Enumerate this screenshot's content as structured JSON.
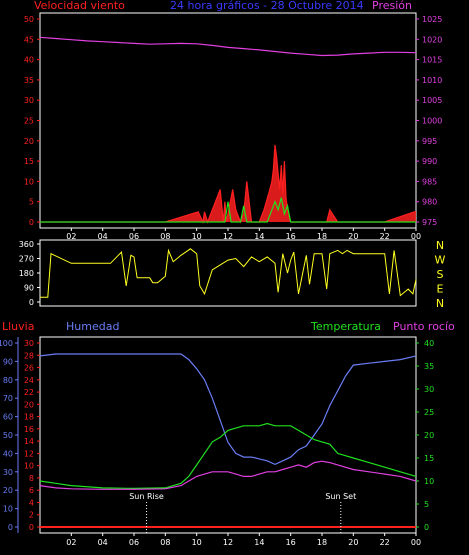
{
  "colors": {
    "background": "#000000",
    "frame": "#ffffff",
    "wind_speed": "#ff2020",
    "wind_gust": "#20e020",
    "pressure": "#e040e0",
    "direction": "#ffff20",
    "rain": "#ff2020",
    "humidity": "#6a7df5",
    "temperature": "#20e020",
    "dewpoint": "#e040e0",
    "rain_axis": "#ff2020",
    "humidity_axis": "#6a7df5",
    "temp_axis": "#20e020",
    "title": "#3a3aff",
    "sun_line": "#ffffff"
  },
  "header": {
    "wind_label": "Velocidad viento",
    "title": "24 hora gráficos - 28 Octubre 2014",
    "pressure_label": "Presión"
  },
  "direction_labels": [
    "N",
    "W",
    "S",
    "E",
    "N"
  ],
  "bottom_header": {
    "rain_label": "Lluvia",
    "humidity_label": "Humedad",
    "temp_label": "Temperatura",
    "dew_label": "Punto rocío"
  },
  "annotations": {
    "sunrise": "Sun Rise",
    "sunset": "Sun Set",
    "sunrise_hour": 6.8,
    "sunset_hour": 19.2
  },
  "chart_data": [
    {
      "type": "line",
      "panel": "wind_pressure",
      "x_ticks": [
        "02",
        "04",
        "06",
        "08",
        "10",
        "12",
        "14",
        "16",
        "18",
        "20",
        "22",
        "00"
      ],
      "x_range_hours": [
        0,
        24
      ],
      "y_left_ticks": [
        "0",
        "5",
        "10",
        "15",
        "20",
        "25",
        "30",
        "35",
        "40",
        "45",
        "50"
      ],
      "y_left_range": [
        0,
        50
      ],
      "y_right_ticks": [
        "975",
        "980",
        "985",
        "990",
        "995",
        "1000",
        "1005",
        "1010",
        "1015",
        "1020",
        "1025"
      ],
      "y_right_range": [
        975,
        1025
      ],
      "series": [
        {
          "name": "Presión",
          "axis": "right",
          "x": [
            0,
            1,
            2,
            3,
            4,
            5,
            6,
            7,
            8,
            9,
            10,
            11,
            12,
            13,
            14,
            15,
            16,
            17,
            18,
            19,
            20,
            21,
            22,
            23,
            24
          ],
          "values": [
            1020.5,
            1020.2,
            1019.9,
            1019.6,
            1019.4,
            1019.2,
            1019.0,
            1018.8,
            1018.9,
            1019.0,
            1018.9,
            1018.5,
            1018.0,
            1017.7,
            1017.4,
            1017.0,
            1016.6,
            1016.3,
            1016.0,
            1016.1,
            1016.4,
            1016.6,
            1016.8,
            1016.8,
            1016.7
          ]
        },
        {
          "name": "Velocidad viento",
          "axis": "left",
          "x": [
            0,
            2,
            4,
            6,
            8,
            10.1,
            10.4,
            10.5,
            10.7,
            11.5,
            11.7,
            11.8,
            11.9,
            12.3,
            12.5,
            12.8,
            13.0,
            13.2,
            13.5,
            14.0,
            14.3,
            14.6,
            14.8,
            14.9,
            15.0,
            15.1,
            15.2,
            15.3,
            15.4,
            15.5,
            15.6,
            15.7,
            15.8,
            16.0,
            16.3,
            17.0,
            18.3,
            18.5,
            19.0,
            20.0,
            22.0,
            23.9,
            24.0
          ],
          "values": [
            0,
            0,
            0,
            0,
            0,
            2.5,
            0,
            2.5,
            0,
            8,
            0,
            5,
            0,
            8,
            3,
            0,
            2,
            10,
            0,
            0,
            3,
            7,
            10,
            13,
            19,
            16,
            12,
            8,
            14,
            7,
            15,
            6,
            3,
            0,
            0,
            0,
            0,
            3,
            0,
            0,
            0,
            2.5,
            2.5
          ]
        },
        {
          "name": "Gust",
          "axis": "left",
          "x": [
            0,
            11.8,
            12.0,
            12.2,
            12.8,
            13.0,
            13.2,
            14.5,
            14.8,
            15.0,
            15.2,
            15.4,
            15.6,
            15.8,
            16.0,
            16.5,
            24.0
          ],
          "values": [
            0,
            0,
            5,
            0,
            0,
            4,
            0,
            0,
            3,
            5,
            3,
            6,
            2,
            4,
            0,
            0,
            0
          ]
        }
      ]
    },
    {
      "type": "line",
      "panel": "wind_direction",
      "y_ticks": [
        "0",
        "90",
        "180",
        "270",
        "360"
      ],
      "y_range": [
        0,
        360
      ],
      "series": [
        {
          "name": "Dirección",
          "x": [
            0,
            0.5,
            0.7,
            2,
            3.5,
            4.5,
            5.0,
            5.2,
            5.5,
            5.8,
            6.0,
            6.2,
            6.5,
            7.0,
            7.2,
            7.5,
            8.0,
            8.2,
            8.5,
            9.0,
            9.3,
            9.6,
            10.0,
            10.2,
            10.5,
            11.0,
            11.5,
            12.0,
            12.5,
            13.0,
            13.5,
            14.0,
            14.5,
            15.0,
            15.2,
            15.5,
            15.8,
            16.0,
            16.2,
            16.5,
            17.0,
            17.2,
            17.5,
            18.0,
            18.3,
            18.5,
            19.0,
            19.3,
            19.6,
            20.0,
            21.0,
            22.0,
            22.3,
            22.6,
            23.0,
            23.5,
            23.8,
            24.0
          ],
          "values": [
            30,
            30,
            300,
            240,
            240,
            240,
            290,
            310,
            100,
            290,
            280,
            150,
            150,
            150,
            120,
            120,
            160,
            320,
            250,
            290,
            310,
            330,
            300,
            100,
            50,
            200,
            230,
            260,
            270,
            220,
            280,
            250,
            280,
            240,
            60,
            300,
            180,
            260,
            310,
            50,
            290,
            110,
            300,
            300,
            80,
            300,
            320,
            300,
            320,
            300,
            300,
            300,
            50,
            320,
            40,
            80,
            50,
            140
          ]
        }
      ]
    },
    {
      "type": "line",
      "panel": "rain_humidity_temp",
      "x_ticks": [
        "02",
        "04",
        "06",
        "08",
        "10",
        "12",
        "14",
        "16",
        "18",
        "20",
        "22",
        "00"
      ],
      "x_range_hours": [
        0,
        24
      ],
      "y_rain_ticks": [
        "0",
        "2",
        "4",
        "6",
        "8",
        "10",
        "12",
        "14",
        "16",
        "18",
        "20",
        "22",
        "24",
        "26",
        "28",
        "30"
      ],
      "y_rain_range": [
        0,
        30
      ],
      "y_humidity_ticks": [
        "0",
        "10",
        "20",
        "30",
        "40",
        "50",
        "60",
        "70",
        "80",
        "90",
        "100"
      ],
      "y_humidity_range": [
        0,
        100
      ],
      "y_temp_ticks": [
        "0",
        "5",
        "10",
        "15",
        "20",
        "25",
        "30",
        "35",
        "40"
      ],
      "y_temp_range": [
        0,
        40
      ],
      "series": [
        {
          "name": "Humedad",
          "axis": "humidity",
          "x": [
            0,
            1,
            2,
            4,
            6,
            8,
            9.0,
            9.5,
            10.0,
            10.5,
            11.0,
            11.5,
            12.0,
            12.5,
            13.0,
            13.5,
            14.0,
            14.5,
            15.0,
            15.5,
            16.0,
            16.5,
            17.0,
            17.5,
            18.0,
            18.5,
            19.0,
            19.5,
            20.0,
            21.0,
            22.0,
            23.0,
            24.0
          ],
          "values": [
            93,
            94,
            94,
            94,
            94,
            94,
            94,
            91,
            86,
            80,
            70,
            58,
            46,
            40,
            38,
            38,
            37,
            36,
            34,
            36,
            38,
            42,
            44,
            50,
            56,
            66,
            74,
            82,
            88,
            89,
            90,
            91,
            93
          ]
        },
        {
          "name": "Temperatura",
          "axis": "temp",
          "x": [
            0,
            1,
            2,
            4,
            6,
            8,
            9.0,
            9.5,
            10.0,
            10.5,
            11.0,
            11.5,
            12.0,
            12.5,
            13.0,
            13.5,
            14.0,
            14.5,
            15.0,
            15.5,
            16.0,
            16.5,
            17.0,
            17.5,
            18.0,
            18.5,
            19.0,
            20.0,
            21.0,
            22.0,
            23.0,
            24.0
          ],
          "values": [
            10,
            9.5,
            9,
            8.5,
            8.4,
            8.5,
            9.5,
            11,
            13.5,
            16,
            18.5,
            19.5,
            21,
            21.5,
            22,
            22,
            22,
            22.5,
            22,
            22,
            22,
            21,
            20,
            19,
            18.5,
            18,
            16,
            15,
            14,
            13,
            12,
            11
          ]
        },
        {
          "name": "Punto rocío",
          "axis": "temp",
          "x": [
            0,
            1,
            2,
            4,
            6,
            8,
            9.0,
            9.5,
            10.0,
            10.5,
            11.0,
            11.5,
            12.0,
            12.5,
            13.0,
            13.5,
            14.0,
            14.5,
            15.0,
            15.5,
            16.0,
            16.5,
            17.0,
            17.5,
            18.0,
            18.5,
            19.0,
            20.0,
            21.0,
            22.0,
            23.0,
            24.0
          ],
          "values": [
            9,
            8.5,
            8.3,
            8.2,
            8.2,
            8.3,
            9,
            10,
            11,
            11.5,
            12,
            12,
            12,
            11.5,
            11,
            11,
            11.5,
            12,
            12,
            12.5,
            13,
            13.5,
            13,
            14,
            14.3,
            14,
            13.5,
            12.5,
            12,
            11.5,
            11,
            10
          ]
        },
        {
          "name": "Lluvia",
          "axis": "rain",
          "x": [
            0,
            24
          ],
          "values": [
            0,
            0
          ]
        }
      ]
    }
  ]
}
